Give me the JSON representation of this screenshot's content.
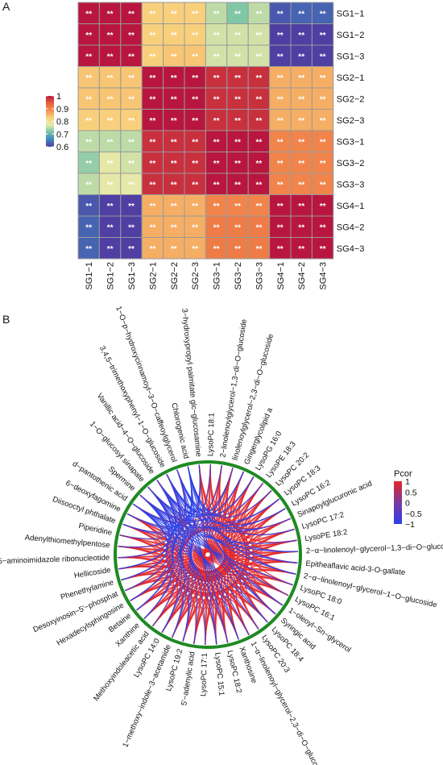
{
  "chart_data": [
    {
      "type": "heatmap",
      "panel_label": "A",
      "rows": [
        "SG1−1",
        "SG1−2",
        "SG1−3",
        "SG2−1",
        "SG2−2",
        "SG2−3",
        "SG3−1",
        "SG3−2",
        "SG3−3",
        "SG4−1",
        "SG4−2",
        "SG4−3"
      ],
      "cols": [
        "SG1−1",
        "SG1−2",
        "SG1−3",
        "SG2−1",
        "SG2−2",
        "SG2−3",
        "SG3−1",
        "SG3−2",
        "SG3−3",
        "SG4−1",
        "SG4−2",
        "SG4−3"
      ],
      "values": [
        [
          1.0,
          1.0,
          1.0,
          0.83,
          0.83,
          0.83,
          0.75,
          0.72,
          0.75,
          0.62,
          0.63,
          0.63
        ],
        [
          1.0,
          1.0,
          1.0,
          0.83,
          0.83,
          0.83,
          0.76,
          0.76,
          0.76,
          0.6,
          0.6,
          0.6
        ],
        [
          1.0,
          1.0,
          1.0,
          0.83,
          0.84,
          0.84,
          0.76,
          0.76,
          0.76,
          0.6,
          0.6,
          0.6
        ],
        [
          0.84,
          0.84,
          0.84,
          1.0,
          1.0,
          1.0,
          0.98,
          0.98,
          0.98,
          0.86,
          0.86,
          0.86
        ],
        [
          0.84,
          0.84,
          0.84,
          1.0,
          1.0,
          1.0,
          0.98,
          0.98,
          0.98,
          0.86,
          0.86,
          0.86
        ],
        [
          0.83,
          0.83,
          0.83,
          1.0,
          1.0,
          1.0,
          0.98,
          0.98,
          0.98,
          0.86,
          0.86,
          0.86
        ],
        [
          0.75,
          0.75,
          0.75,
          0.98,
          0.98,
          0.98,
          1.0,
          1.0,
          1.0,
          0.9,
          0.9,
          0.9
        ],
        [
          0.73,
          0.77,
          0.76,
          0.98,
          0.98,
          0.98,
          1.0,
          1.0,
          1.0,
          0.9,
          0.9,
          0.9
        ],
        [
          0.75,
          0.77,
          0.77,
          0.98,
          0.98,
          0.98,
          1.0,
          1.0,
          1.0,
          0.9,
          0.9,
          0.9
        ],
        [
          0.62,
          0.6,
          0.6,
          0.86,
          0.86,
          0.86,
          0.9,
          0.9,
          0.9,
          1.0,
          1.0,
          1.0
        ],
        [
          0.63,
          0.6,
          0.6,
          0.86,
          0.86,
          0.86,
          0.91,
          0.91,
          0.91,
          1.0,
          1.0,
          1.0
        ],
        [
          0.63,
          0.6,
          0.6,
          0.86,
          0.86,
          0.86,
          0.91,
          0.91,
          0.91,
          1.0,
          1.0,
          1.0
        ]
      ],
      "cell_label": "**",
      "colorbar": {
        "ticks": [
          "1",
          "0.9",
          "0.8",
          "0.7",
          "0.6"
        ],
        "tick_values": [
          1,
          0.9,
          0.8,
          0.7,
          0.6
        ],
        "range": [
          0.6,
          1.0
        ]
      },
      "colors": [
        "#4f3fa3",
        "#3f86c0",
        "#74c3a6",
        "#e9e9a8",
        "#f8d27c",
        "#f29050",
        "#e8603c",
        "#b8163f"
      ],
      "grid": true
    },
    {
      "type": "chord",
      "panel_label": "B",
      "legend": {
        "title": "Pcor",
        "ticks": [
          "1",
          "0.5",
          "0",
          "−0.5",
          "−1"
        ],
        "tick_values": [
          1,
          0.5,
          0,
          -0.5,
          -1
        ],
        "placement": "right"
      },
      "colors": {
        "positive": "#e3262a",
        "negative": "#2b3fe8",
        "mid": "#7a3aa0",
        "ring": "#1e8a22"
      },
      "labels": [
        "3−hydroxypropyl palmitate glc−glucosamine",
        "LysoPC 18:1",
        "2−linolenoylglycerol−1,3−di−O−glucoside",
        "linolenoylglycerol−2,3−di−O−glucoside",
        "Gingerglycolipid a",
        "LysoPG 16:0",
        "LysoPE 18:3",
        "LysoPC 20:2",
        "LysoPC 18:3",
        "LysoPC 16:2",
        "Sinapoylglucuronic acid",
        "LysoPC 17:2",
        "LysoPE 18:2",
        "2−α−linolenoyl−glycerol−1,3−di−O−glucoside",
        "Epitheaflavic acid-3-O-gallate",
        "2−α−linolenoyl−glycerol−1−O−glucoside",
        "LysoPC 18:0",
        "LysoPC 16:1",
        "1−oleoyl−Sn−glycerol",
        "Syringic acid",
        "LysoPC 18:4",
        "LysoPC 20:3",
        "1−α−linolenoyl−glycerol−2,3−di−O−glucoside",
        "Xanthosine",
        "LysoPC 18:2",
        "LysoPC 15:1",
        "LysoPC 17:1",
        "5'−adenylic acid",
        "LysoPC 19:2",
        "1−methoxy−indole−3−acetamide",
        "LysoPC 14:0",
        "Methoxyindoleacetic acid",
        "Xanthine",
        "Betaine",
        "Hexadecylsphingosine",
        "Desoxyinosin−5'−phosphat",
        "Phenethylamine",
        "Hellicoside",
        "5−aminoimidazole ribonucleotide",
        "Adenylthiomethylpentose",
        "Piperidine",
        "Diisooctyl phthalate",
        "6−deoxyfagomine",
        "d−pantothenic acid",
        "Spermine",
        "1−O−glucosyl sinapate",
        "Vanillic acid−4−O−glucoside",
        "3,4,5−trimethoxyphenyl−1−O−glucoside",
        "1−O−p−hydroxycinnamoyl−3−O−caffeoylglycerol",
        "Chlorogenic acid"
      ],
      "negative_group": [
        "Spermine",
        "1−O−glucosyl sinapate",
        "Vanillic acid−4−O−glucoside",
        "3,4,5−trimethoxyphenyl−1−O−glucoside",
        "1−O−p−hydroxycinnamoyl−3−O−caffeoylglycerol",
        "Chlorogenic acid",
        "d−pantothenic acid"
      ]
    }
  ]
}
